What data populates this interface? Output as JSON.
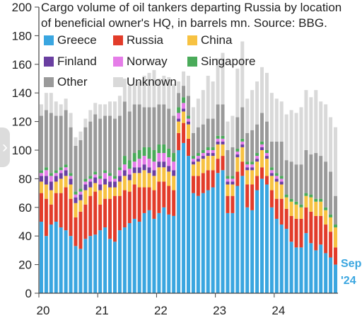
{
  "chart_data": {
    "type": "bar",
    "title_lines": [
      "Cargo volume of oil tankers departing Russia by location",
      "of beneficial owner's HQ, in barrels mn. Source: BBG."
    ],
    "y_ticks": [
      "0",
      "20",
      "40",
      "60",
      "80",
      "100",
      "120",
      "140",
      "160",
      "180",
      "200"
    ],
    "x_ticks": [
      "20",
      "21",
      "22",
      "23",
      "24"
    ],
    "ylim": [
      0,
      200
    ],
    "stacked": true,
    "end_label": [
      "Sep",
      "'24"
    ],
    "series": [
      {
        "name": "Greece",
        "color": "#3aa6e0",
        "values": [
          50,
          40,
          48,
          50,
          46,
          44,
          40,
          33,
          31,
          38,
          40,
          41,
          44,
          46,
          38,
          36,
          44,
          46,
          49,
          52,
          50,
          56,
          58,
          52,
          56,
          60,
          55,
          54,
          100,
          105,
          96,
          70,
          68,
          70,
          72,
          74,
          84,
          86,
          56,
          56,
          75,
          82,
          60,
          58,
          72,
          80,
          76,
          60,
          52,
          48,
          45,
          36,
          32,
          32,
          42,
          35,
          30,
          34,
          28,
          25,
          20
        ]
      },
      {
        "name": "Russia",
        "color": "#e23c2a",
        "values": [
          20,
          26,
          14,
          20,
          24,
          30,
          26,
          20,
          26,
          24,
          28,
          30,
          18,
          20,
          28,
          32,
          24,
          26,
          22,
          24,
          24,
          18,
          16,
          20,
          22,
          18,
          20,
          18,
          12,
          14,
          12,
          12,
          14,
          14,
          14,
          12,
          10,
          10,
          12,
          12,
          10,
          10,
          16,
          18,
          10,
          8,
          6,
          12,
          14,
          18,
          14,
          18,
          20,
          20,
          18,
          22,
          24,
          20,
          20,
          18,
          12
        ]
      },
      {
        "name": "China",
        "color": "#f7c242",
        "values": [
          8,
          10,
          10,
          8,
          10,
          8,
          10,
          10,
          8,
          10,
          6,
          6,
          10,
          10,
          8,
          6,
          10,
          10,
          8,
          8,
          10,
          12,
          10,
          10,
          10,
          10,
          10,
          10,
          8,
          8,
          10,
          8,
          10,
          10,
          10,
          10,
          10,
          8,
          8,
          8,
          10,
          10,
          10,
          10,
          10,
          12,
          12,
          10,
          12,
          10,
          8,
          10,
          10,
          8,
          8,
          10,
          10,
          10,
          10,
          10,
          14
        ]
      },
      {
        "name": "Finland",
        "color": "#6a3fa1",
        "values": [
          4,
          6,
          6,
          4,
          4,
          4,
          4,
          4,
          4,
          4,
          4,
          4,
          4,
          4,
          4,
          4,
          4,
          4,
          4,
          4,
          4,
          4,
          4,
          4,
          4,
          4,
          4,
          4,
          2,
          2,
          2,
          2,
          2,
          2,
          2,
          2,
          2,
          2,
          2,
          2,
          2,
          2,
          2,
          2,
          2,
          2,
          2,
          2,
          2,
          2,
          0,
          0,
          0,
          0,
          0,
          0,
          0,
          0,
          0,
          0,
          0
        ]
      },
      {
        "name": "Norway",
        "color": "#e57de8",
        "values": [
          2,
          4,
          4,
          2,
          2,
          2,
          2,
          2,
          2,
          2,
          2,
          2,
          4,
          4,
          4,
          2,
          4,
          4,
          4,
          4,
          6,
          6,
          6,
          6,
          6,
          6,
          6,
          6,
          4,
          4,
          2,
          2,
          2,
          2,
          2,
          2,
          2,
          2,
          2,
          2,
          2,
          2,
          2,
          2,
          2,
          2,
          2,
          2,
          2,
          2,
          0,
          0,
          0,
          0,
          0,
          0,
          0,
          0,
          0,
          0,
          0
        ]
      },
      {
        "name": "Singapore",
        "color": "#4aab5a",
        "values": [
          2,
          2,
          2,
          2,
          2,
          2,
          2,
          2,
          2,
          2,
          2,
          2,
          2,
          2,
          2,
          2,
          2,
          6,
          6,
          6,
          6,
          6,
          8,
          8,
          6,
          6,
          6,
          6,
          4,
          4,
          2,
          2,
          2,
          2,
          2,
          2,
          2,
          2,
          2,
          2,
          2,
          2,
          2,
          2,
          2,
          2,
          2,
          2,
          2,
          2,
          2,
          2,
          2,
          2,
          2,
          2,
          2,
          2,
          2,
          2,
          2
        ]
      },
      {
        "name": "Other",
        "color": "#9a9a9a",
        "values": [
          38,
          40,
          42,
          38,
          36,
          38,
          32,
          32,
          34,
          36,
          38,
          40,
          40,
          38,
          40,
          40,
          36,
          38,
          34,
          34,
          32,
          28,
          28,
          30,
          28,
          28,
          28,
          26,
          10,
          8,
          14,
          16,
          18,
          18,
          20,
          20,
          22,
          22,
          18,
          20,
          22,
          22,
          20,
          22,
          20,
          20,
          20,
          18,
          22,
          24,
          24,
          26,
          26,
          28,
          30,
          28,
          32,
          30,
          32,
          30,
          20
        ]
      },
      {
        "name": "Unknown",
        "color": "#d9d9d9",
        "values": [
          8,
          12,
          14,
          10,
          8,
          8,
          10,
          6,
          6,
          6,
          8,
          8,
          10,
          8,
          10,
          12,
          14,
          16,
          18,
          14,
          16,
          22,
          24,
          26,
          18,
          20,
          22,
          22,
          8,
          10,
          14,
          18,
          20,
          24,
          30,
          26,
          32,
          36,
          20,
          22,
          34,
          46,
          24,
          28,
          30,
          32,
          34,
          34,
          30,
          28,
          32,
          36,
          36,
          40,
          42,
          40,
          44,
          38,
          40,
          38,
          48
        ]
      }
    ]
  }
}
